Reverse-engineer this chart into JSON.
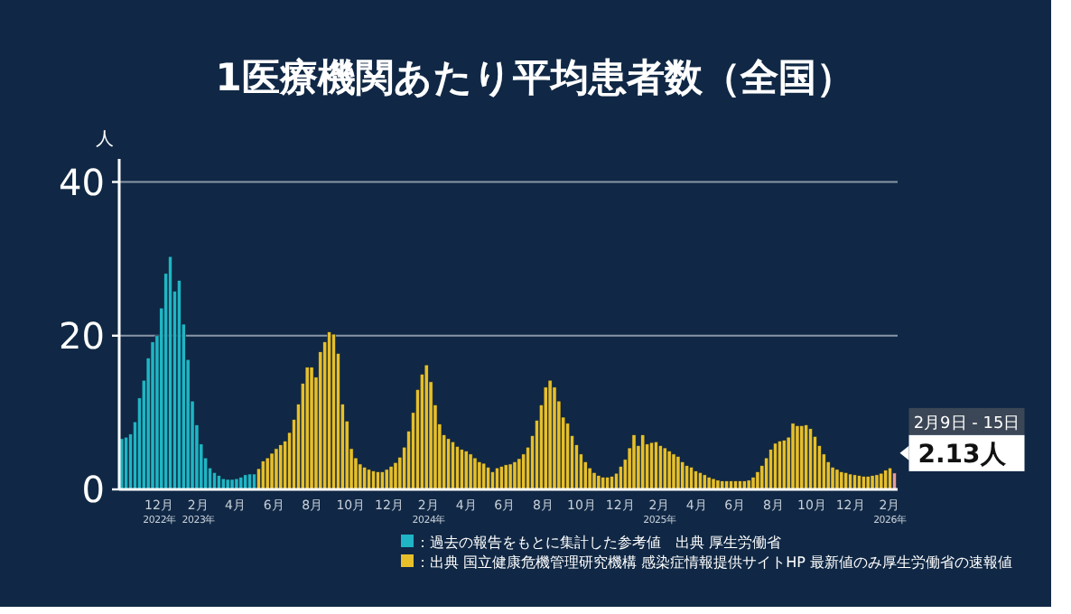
{
  "chart_data": {
    "type": "bar",
    "title": "1医療機関あたり平均患者数（全国）",
    "ylabel": "人",
    "xlim": [
      "2022-09-29",
      "2026-02-14"
    ],
    "ylim": [
      0,
      43
    ],
    "yticks": [
      0,
      20,
      40
    ],
    "xticks": [
      {
        "value": "2022-12-01",
        "label": "12月\n2022年"
      },
      {
        "value": "2023-02-01",
        "label": "2月\n2023年"
      },
      {
        "value": "2023-04-01",
        "label": "4月"
      },
      {
        "value": "2023-06-01",
        "label": "6月"
      },
      {
        "value": "2023-08-01",
        "label": "8月"
      },
      {
        "value": "2023-10-01",
        "label": "10月"
      },
      {
        "value": "2023-12-01",
        "label": "12月"
      },
      {
        "value": "2024-02-01",
        "label": "2月\n2024年"
      },
      {
        "value": "2024-04-01",
        "label": "4月"
      },
      {
        "value": "2024-06-01",
        "label": "6月"
      },
      {
        "value": "2024-08-01",
        "label": "8月"
      },
      {
        "value": "2024-10-01",
        "label": "10月"
      },
      {
        "value": "2024-12-01",
        "label": "12月"
      },
      {
        "value": "2025-02-01",
        "label": "2月\n2025年"
      },
      {
        "value": "2025-04-01",
        "label": "4月"
      },
      {
        "value": "2025-06-01",
        "label": "6月"
      },
      {
        "value": "2025-08-01",
        "label": "8月"
      },
      {
        "value": "2025-10-01",
        "label": "10月"
      },
      {
        "value": "2025-12-01",
        "label": "12月"
      },
      {
        "value": "2026-02-01",
        "label": "2月\n2026年"
      }
    ],
    "grid": "y",
    "legend": "bottom",
    "series": [
      {
        "name": "：過去の報告をもとに集計した参考値　出典 厚生労働省",
        "color": "#1fb5c4",
        "x": [
          "2022-10-03",
          "2022-10-10",
          "2022-10-17",
          "2022-10-24",
          "2022-10-31",
          "2022-11-07",
          "2022-11-14",
          "2022-11-21",
          "2022-11-28",
          "2022-12-05",
          "2022-12-12",
          "2022-12-19",
          "2022-12-26",
          "2023-01-02",
          "2023-01-09",
          "2023-01-16",
          "2023-01-23",
          "2023-01-30",
          "2023-02-06",
          "2023-02-13",
          "2023-02-20",
          "2023-02-27",
          "2023-03-06",
          "2023-03-13",
          "2023-03-20",
          "2023-03-27",
          "2023-04-03",
          "2023-04-10",
          "2023-04-17",
          "2023-04-24",
          "2023-05-01"
        ],
        "values": [
          6.6,
          6.8,
          7.2,
          8.8,
          11.9,
          14.2,
          17.1,
          19.2,
          20.0,
          23.6,
          28.1,
          30.3,
          25.8,
          27.2,
          21.5,
          16.9,
          11.5,
          8.4,
          5.9,
          4.1,
          2.8,
          2.2,
          1.8,
          1.4,
          1.3,
          1.3,
          1.4,
          1.6,
          1.9,
          2.0,
          2.0
        ]
      },
      {
        "name": "：出典 国立健康危機管理研究機構 感染症情報提供サイトHP 最新値のみ厚生労働省の速報値",
        "color": "#e6bf2a",
        "x": [
          "2023-05-08",
          "2023-05-15",
          "2023-05-22",
          "2023-05-29",
          "2023-06-05",
          "2023-06-12",
          "2023-06-19",
          "2023-06-26",
          "2023-07-03",
          "2023-07-10",
          "2023-07-17",
          "2023-07-24",
          "2023-07-31",
          "2023-08-07",
          "2023-08-14",
          "2023-08-21",
          "2023-08-28",
          "2023-09-04",
          "2023-09-11",
          "2023-09-18",
          "2023-09-25",
          "2023-10-02",
          "2023-10-09",
          "2023-10-16",
          "2023-10-23",
          "2023-10-30",
          "2023-11-06",
          "2023-11-13",
          "2023-11-20",
          "2023-11-27",
          "2023-12-04",
          "2023-12-11",
          "2023-12-18",
          "2023-12-25",
          "2024-01-01",
          "2024-01-08",
          "2024-01-15",
          "2024-01-22",
          "2024-01-29",
          "2024-02-05",
          "2024-02-12",
          "2024-02-19",
          "2024-02-26",
          "2024-03-04",
          "2024-03-11",
          "2024-03-18",
          "2024-03-25",
          "2024-04-01",
          "2024-04-08",
          "2024-04-15",
          "2024-04-22",
          "2024-04-29",
          "2024-05-06",
          "2024-05-13",
          "2024-05-20",
          "2024-05-27",
          "2024-06-03",
          "2024-06-10",
          "2024-06-17",
          "2024-06-24",
          "2024-07-01",
          "2024-07-08",
          "2024-07-15",
          "2024-07-22",
          "2024-07-29",
          "2024-08-05",
          "2024-08-12",
          "2024-08-19",
          "2024-08-26",
          "2024-09-02",
          "2024-09-09",
          "2024-09-16",
          "2024-09-23",
          "2024-09-30",
          "2024-10-07",
          "2024-10-14",
          "2024-10-21",
          "2024-10-28",
          "2024-11-04",
          "2024-11-11",
          "2024-11-18",
          "2024-11-25",
          "2024-12-02",
          "2024-12-09",
          "2024-12-16",
          "2024-12-23",
          "2024-12-30",
          "2025-01-06",
          "2025-01-13",
          "2025-01-20",
          "2025-01-27",
          "2025-02-03",
          "2025-02-10",
          "2025-02-17",
          "2025-02-24",
          "2025-03-03",
          "2025-03-10",
          "2025-03-17",
          "2025-03-24",
          "2025-03-31",
          "2025-04-07",
          "2025-04-14",
          "2025-04-21",
          "2025-04-28",
          "2025-05-05",
          "2025-05-12",
          "2025-05-19",
          "2025-05-26",
          "2025-06-02",
          "2025-06-09",
          "2025-06-16",
          "2025-06-23",
          "2025-06-30",
          "2025-07-07",
          "2025-07-14",
          "2025-07-21",
          "2025-07-28",
          "2025-08-04",
          "2025-08-11",
          "2025-08-18",
          "2025-08-25",
          "2025-09-01",
          "2025-09-08",
          "2025-09-15",
          "2025-09-22",
          "2025-09-29",
          "2025-10-06",
          "2025-10-13",
          "2025-10-20",
          "2025-10-27",
          "2025-11-03",
          "2025-11-10",
          "2025-11-17",
          "2025-11-24",
          "2025-12-01",
          "2025-12-08",
          "2025-12-15",
          "2025-12-22",
          "2025-12-29",
          "2026-01-05",
          "2026-01-12",
          "2026-01-19",
          "2026-01-26",
          "2026-02-02"
        ],
        "values": [
          2.7,
          3.7,
          4.1,
          4.7,
          5.3,
          5.8,
          6.3,
          7.4,
          9.1,
          11.1,
          13.8,
          15.9,
          15.9,
          14.6,
          17.9,
          19.2,
          20.5,
          20.2,
          17.7,
          11.1,
          8.9,
          5.3,
          4.1,
          3.3,
          2.9,
          2.6,
          2.4,
          2.3,
          2.3,
          2.6,
          3.0,
          3.5,
          4.2,
          5.5,
          7.6,
          10.0,
          13.0,
          15.0,
          16.2,
          14.0,
          11.0,
          8.5,
          7.1,
          6.6,
          6.2,
          5.6,
          5.2,
          5.0,
          4.6,
          4.1,
          3.6,
          3.4,
          2.9,
          2.3,
          2.8,
          3.0,
          3.2,
          3.3,
          3.6,
          4.0,
          4.6,
          5.5,
          7.0,
          9.0,
          11.0,
          13.3,
          14.2,
          13.3,
          11.5,
          9.4,
          8.6,
          7.0,
          5.8,
          4.6,
          3.6,
          2.8,
          2.2,
          1.8,
          1.6,
          1.6,
          1.7,
          2.1,
          3.0,
          3.9,
          5.4,
          7.1,
          5.7,
          7.1,
          5.9,
          6.1,
          6.2,
          5.7,
          5.4,
          5.0,
          4.6,
          4.3,
          3.6,
          3.1,
          2.9,
          2.4,
          2.2,
          1.9,
          1.6,
          1.4,
          1.2,
          1.1,
          1.1,
          1.1,
          1.1,
          1.1,
          1.1,
          1.2,
          1.6,
          2.3,
          3.1,
          4.1,
          5.2,
          6.0,
          6.3,
          6.4,
          6.8,
          8.6,
          8.3,
          8.3,
          8.4,
          7.9,
          6.9,
          5.7,
          4.6,
          3.6,
          2.9,
          2.6,
          2.3,
          2.2,
          2.0,
          1.9,
          1.8,
          1.7,
          1.7,
          1.8,
          1.9,
          2.1,
          2.5,
          2.8
        ]
      },
      {
        "color": "#e89c9c",
        "x": [
          "2026-02-09"
        ],
        "values": [
          2.13
        ]
      }
    ],
    "annotations": [
      {
        "text": "2月9日 - 15日",
        "x": "2026-02-09",
        "y": 2.13
      },
      {
        "text": "2.13人",
        "x": "2026-02-09",
        "y": 2.13
      }
    ]
  }
}
